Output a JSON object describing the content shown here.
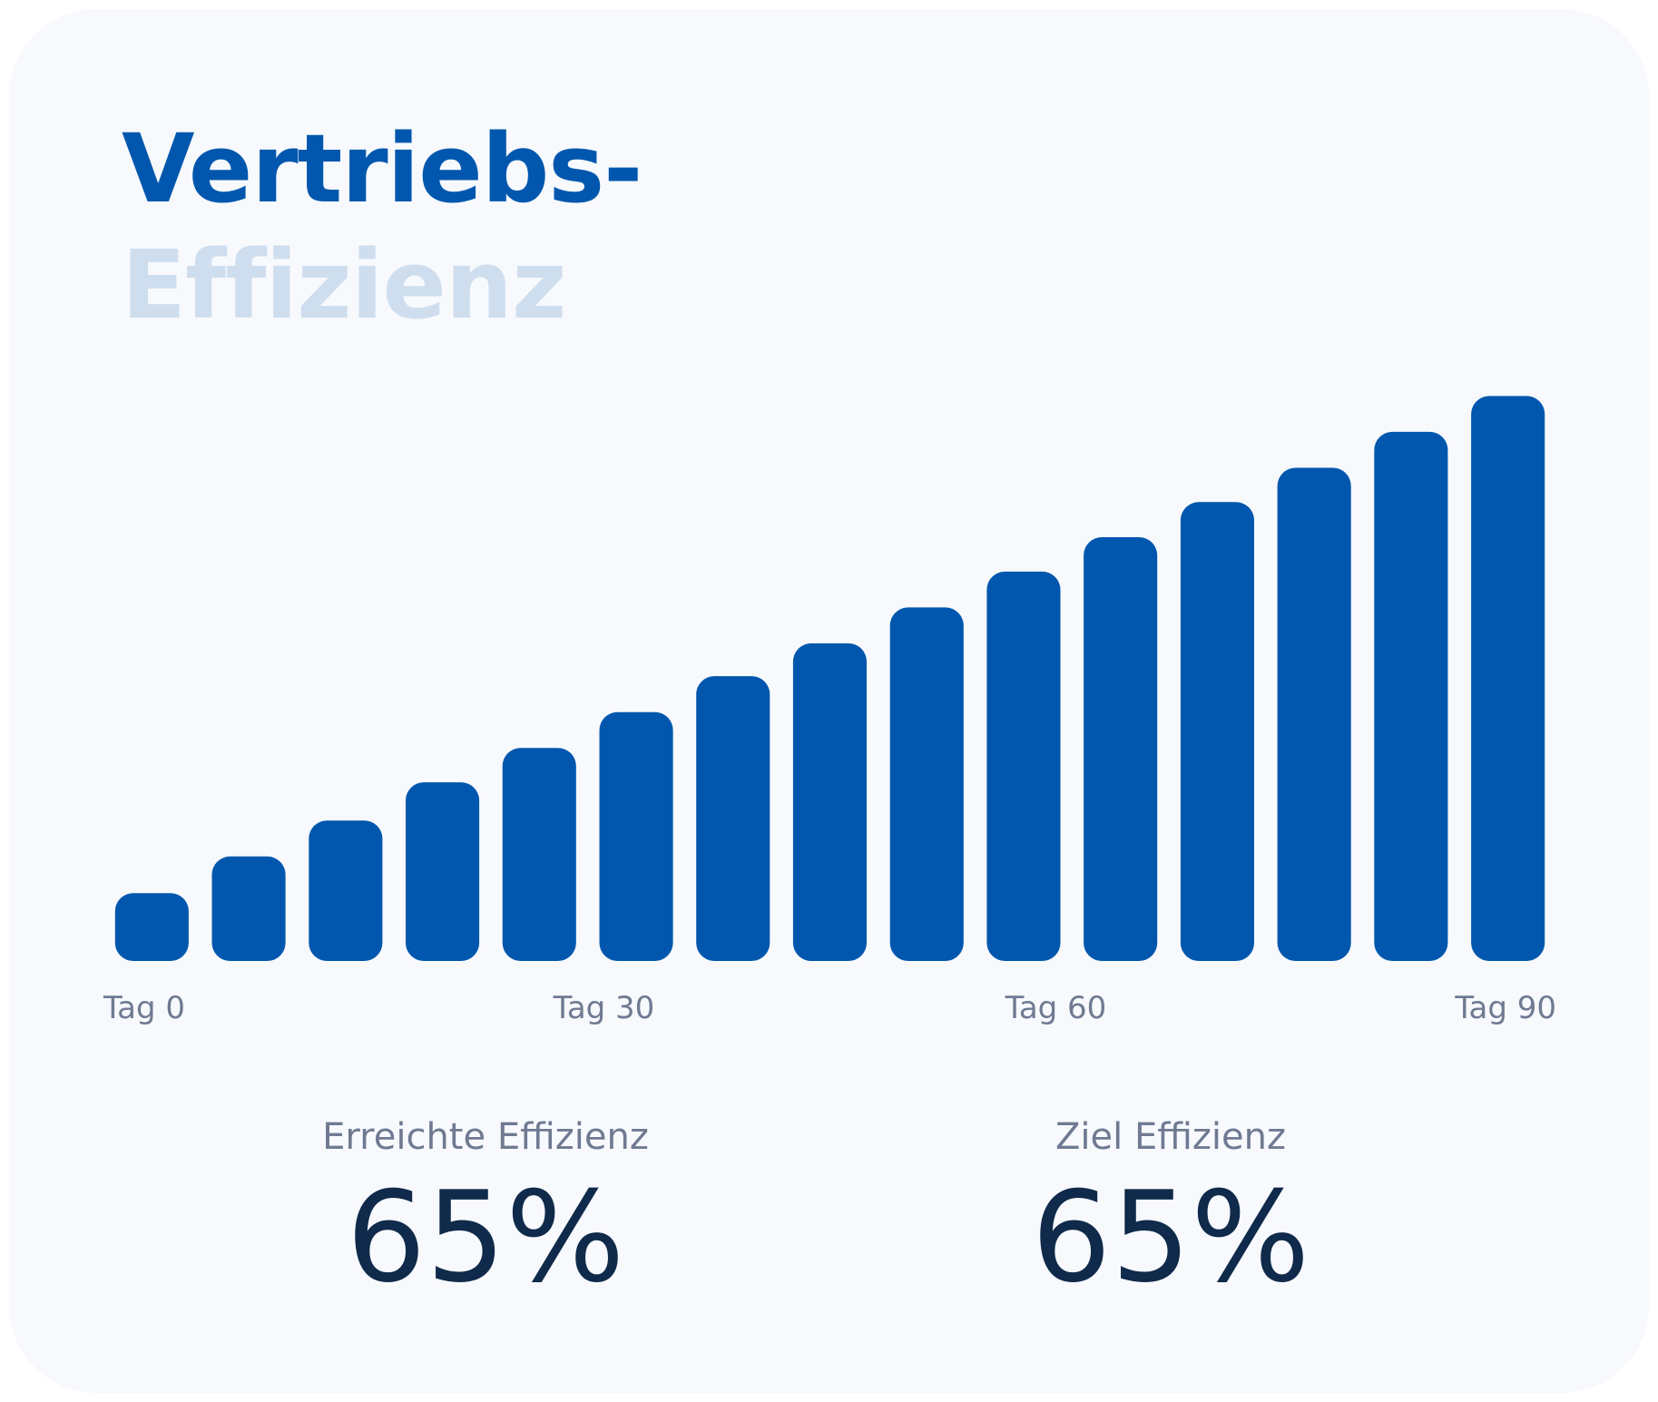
{
  "title": {
    "line1": "Vertriebs-",
    "line2": "Effizienz"
  },
  "chart_data": {
    "type": "bar",
    "categories": [
      "",
      "",
      "",
      "",
      "",
      "",
      "",
      "",
      "",
      "",
      "",
      "",
      "",
      "",
      ""
    ],
    "values": [
      8.7,
      13.4,
      18.0,
      22.9,
      27.3,
      31.9,
      36.5,
      40.7,
      45.3,
      49.9,
      54.3,
      58.8,
      63.2,
      67.8,
      72.4
    ],
    "ylim": [
      0,
      100
    ],
    "x_tick_labels": [
      "Tag 0",
      "Tag 30",
      "Tag 60",
      "Tag 90"
    ],
    "grid": false,
    "bar_color": "#0057ad"
  },
  "stats": {
    "achieved": {
      "label": "Erreichte Effizienz",
      "value": "65%"
    },
    "target": {
      "label": "Ziel Effizienz",
      "value": "65%"
    }
  },
  "colors": {
    "accent": "#0057ad",
    "accent_light": "#cfdeee",
    "muted_text": "#6f7a92",
    "value_text": "#0f2a4a",
    "card_background": "#f7f9fd"
  }
}
